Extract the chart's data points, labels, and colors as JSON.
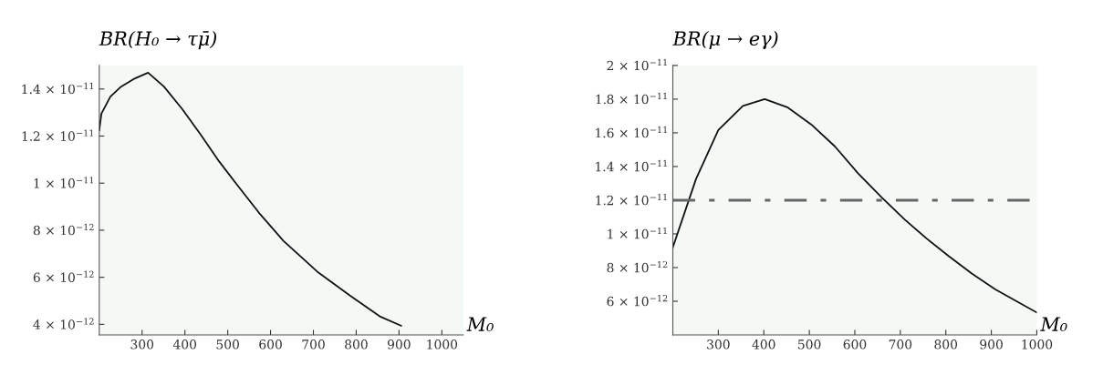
{
  "chart_data": [
    {
      "type": "line",
      "ylabel": "BR(H₀ → τμ̄)",
      "xlabel": "M₀",
      "x": [
        200,
        205,
        226,
        251,
        280,
        314,
        351,
        394,
        437,
        480,
        523,
        573,
        630,
        709,
        787,
        855,
        905
      ],
      "series": [
        {
          "color": "#111111",
          "values": [
            1.224e-11,
            1.295e-11,
            1.368e-11,
            1.41e-11,
            1.442e-11,
            1.469e-11,
            1.41e-11,
            1.314e-11,
            1.206e-11,
            1.092e-11,
            9.9e-12,
            8.74e-12,
            7.55e-12,
            6.24e-12,
            5.2e-12,
            4.34e-12,
            3.94e-12
          ]
        }
      ],
      "xlim": [
        200,
        1050
      ],
      "ylim": [
        3.55e-12,
        1.5e-11
      ],
      "xticks": [
        300,
        400,
        500,
        600,
        700,
        800,
        900,
        1000
      ],
      "yticks": [
        {
          "value": 4e-12,
          "label": "4 × 10$^{−12}$"
        },
        {
          "value": 6e-12,
          "label": "6 × 10$^{−12}$"
        },
        {
          "value": 8e-12,
          "label": "8 × 10$^{−12}$"
        },
        {
          "value": 1e-11,
          "label": "1 × 10$^{−11}$"
        },
        {
          "value": 1.2e-11,
          "label": "1.2 × 10$^{−11}$"
        },
        {
          "value": 1.4e-11,
          "label": "1.4 × 10$^{−11}$"
        }
      ],
      "grid": false,
      "legend": false,
      "marker": "none",
      "line_style": "solid"
    },
    {
      "type": "line",
      "ylabel": "BR(μ → eγ)",
      "xlabel": "M₀",
      "x": [
        200,
        251,
        300,
        354,
        402,
        453,
        504,
        556,
        607,
        659,
        710,
        758,
        806,
        857,
        909,
        960,
        1000
      ],
      "series": [
        {
          "color": "#111111",
          "values": [
            9.2e-12,
            1.326e-11,
            1.616e-11,
            1.76e-11,
            1.8e-11,
            1.75e-11,
            1.65e-11,
            1.52e-11,
            1.36e-11,
            1.217e-11,
            1.084e-11,
            9.72e-12,
            8.69e-12,
            7.65e-12,
            6.7e-12,
            5.93e-12,
            5.33e-12
          ]
        }
      ],
      "xlim": [
        200,
        1000
      ],
      "ylim": [
        4e-12,
        2e-11
      ],
      "xticks": [
        300,
        400,
        500,
        600,
        700,
        800,
        900,
        1000
      ],
      "yticks": [
        {
          "value": 6e-12,
          "label": "6 × 10$^{−12}$"
        },
        {
          "value": 8e-12,
          "label": "8 × 10$^{−12}$"
        },
        {
          "value": 1e-11,
          "label": "1 × 10$^{−11}$"
        },
        {
          "value": 1.2e-11,
          "label": "1.2 × 10$^{−11}$"
        },
        {
          "value": 1.4e-11,
          "label": "1.4 × 10$^{−11}$"
        },
        {
          "value": 1.6e-11,
          "label": "1.6 × 10$^{−11}$"
        },
        {
          "value": 1.8e-11,
          "label": "1.8 × 10$^{−11}$"
        },
        {
          "value": 2e-11,
          "label": "2 × 10$^{−11}$"
        }
      ],
      "ref_lines": [
        {
          "axis": "y",
          "value": 1.2e-11,
          "color": "#666666",
          "line_style": "dashdot"
        }
      ],
      "grid": false,
      "legend": false,
      "marker": "none",
      "line_style": "solid"
    }
  ]
}
